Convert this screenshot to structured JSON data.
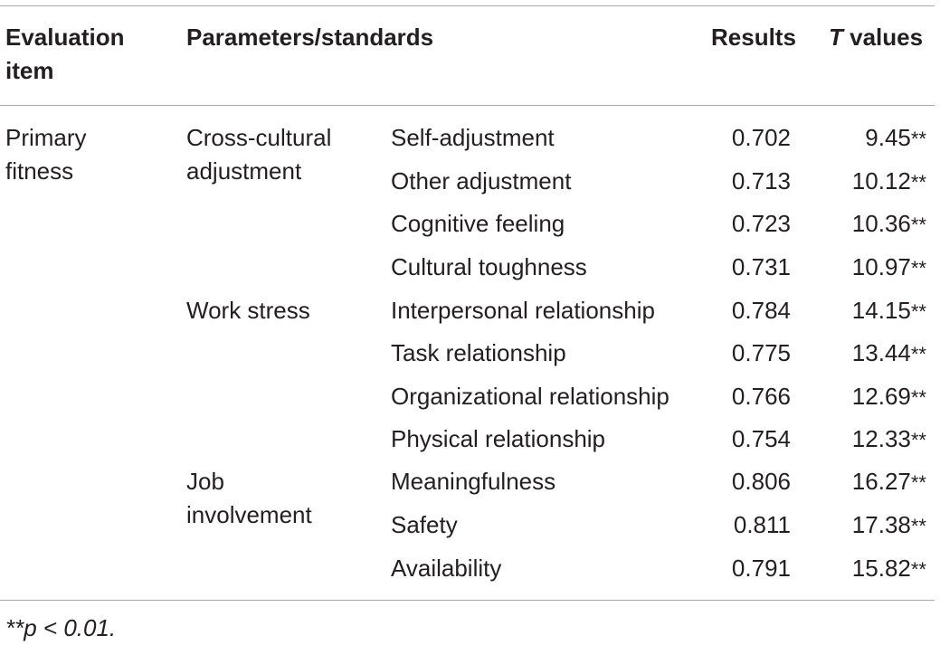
{
  "header": {
    "evaluation_item": "Evaluation item",
    "evaluation_item_line1": "Evaluation",
    "evaluation_item_line2": "item",
    "parameters": "Parameters/standards",
    "results": "Results",
    "t_values_letter": "T",
    "t_values_rest": " values"
  },
  "item": {
    "line1": "Primary",
    "line2": "fitness"
  },
  "groups": [
    {
      "line1": "Cross-cultural",
      "line2": "adjustment"
    },
    {
      "line1": "Work stress"
    },
    {
      "line1": "Job",
      "line2": "involvement"
    }
  ],
  "rows": [
    {
      "sub": "Self-adjustment",
      "result": "0.702",
      "t": "9.45",
      "stars": "**"
    },
    {
      "sub": "Other adjustment",
      "result": "0.713",
      "t": "10.12",
      "stars": "**"
    },
    {
      "sub": "Cognitive feeling",
      "result": "0.723",
      "t": "10.36",
      "stars": "**"
    },
    {
      "sub": "Cultural toughness",
      "result": "0.731",
      "t": "10.97",
      "stars": "**"
    },
    {
      "sub": "Interpersonal relationship",
      "result": "0.784",
      "t": "14.15",
      "stars": "**"
    },
    {
      "sub": "Task relationship",
      "result": "0.775",
      "t": "13.44",
      "stars": "**"
    },
    {
      "sub": "Organizational relationship",
      "result": "0.766",
      "t": "12.69",
      "stars": "**"
    },
    {
      "sub": "Physical relationship",
      "result": "0.754",
      "t": "12.33",
      "stars": "**"
    },
    {
      "sub": "Meaningfulness",
      "result": "0.806",
      "t": "16.27",
      "stars": "**"
    },
    {
      "sub": "Safety",
      "result": "0.811",
      "t": "17.38",
      "stars": "**"
    },
    {
      "sub": "Availability",
      "result": "0.791",
      "t": "15.82",
      "stars": "**"
    }
  ],
  "footnote": "**p < 0.01."
}
